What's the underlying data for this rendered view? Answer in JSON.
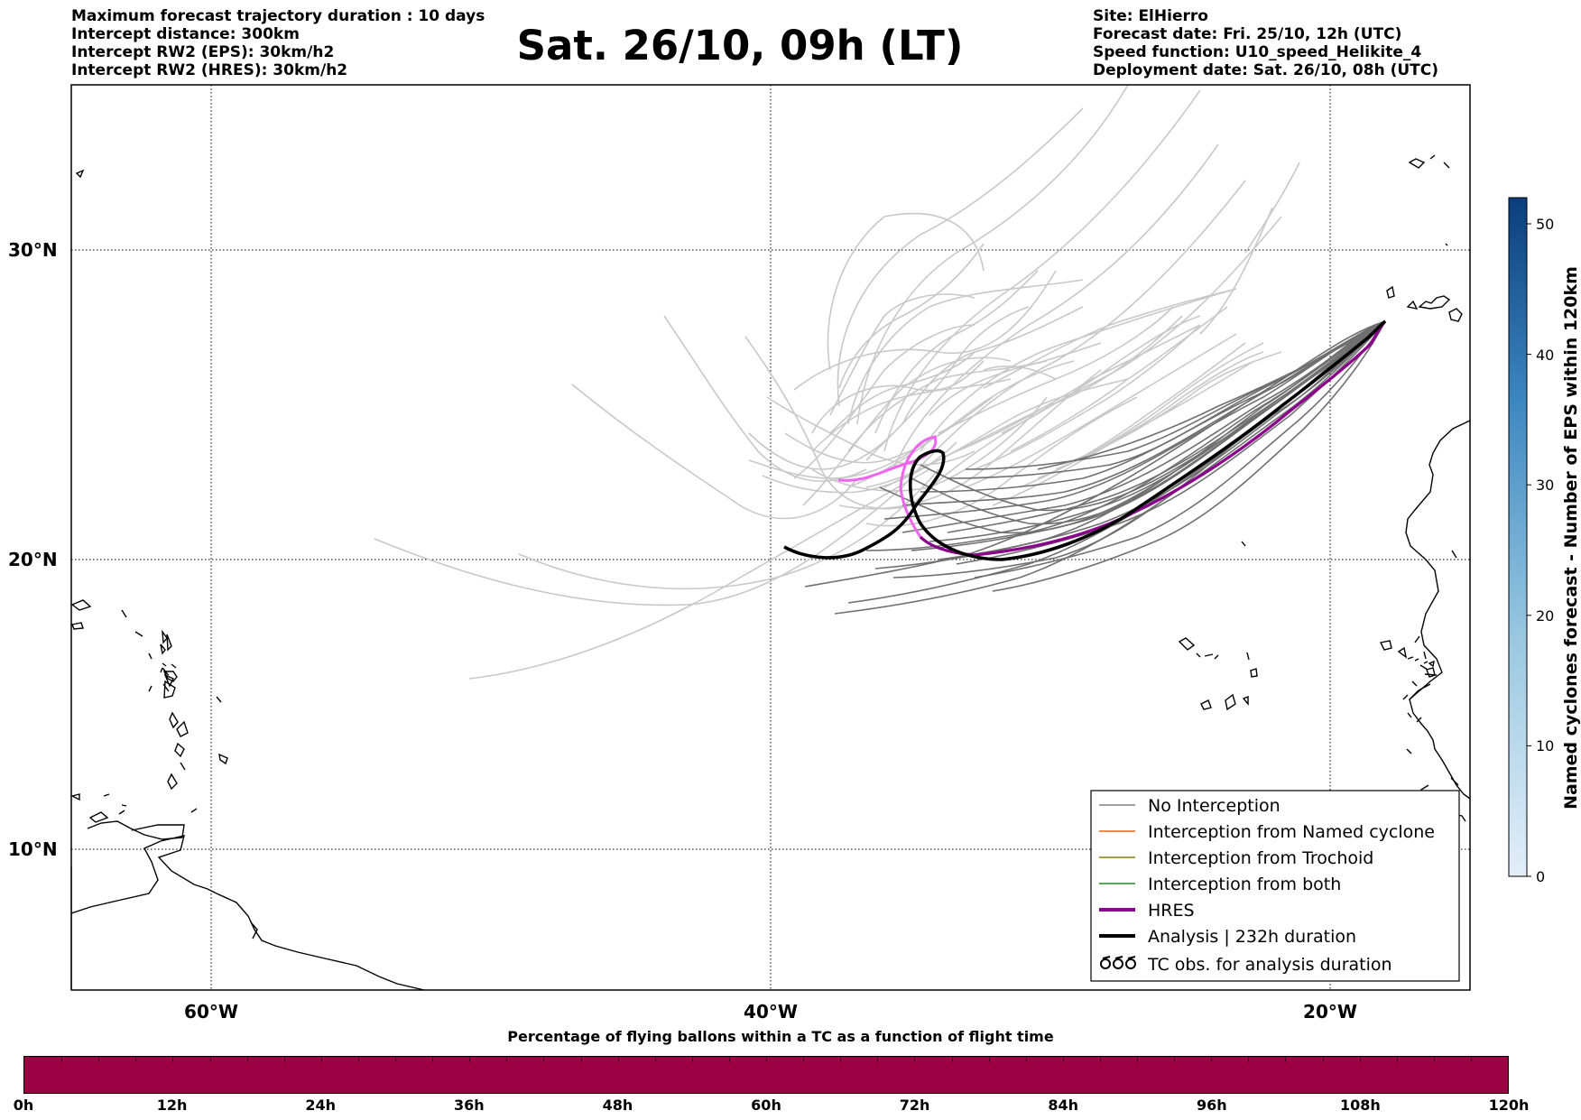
{
  "header": {
    "left_lines": [
      "Maximum forecast trajectory duration : 10 days",
      "Intercept distance: 300km",
      "Intercept RW2 (EPS):  30km/h2",
      "Intercept RW2 (HRES): 30km/h2"
    ],
    "title": "Sat. 26/10, 09h (LT)",
    "right_lines": [
      "Site: ElHierro",
      "Forecast date: Fri. 25/10, 12h (UTC)",
      "Speed function: U10_speed_Helikite_4",
      "Deployment date: Sat. 26/10, 08h (UTC)"
    ]
  },
  "map": {
    "lon_range": [
      -65,
      -15
    ],
    "lat_range": [
      5.35,
      34.6
    ],
    "lat_labels": [
      "30°N",
      "20°N",
      "10°N"
    ],
    "lon_labels": [
      "60°W",
      "40°W",
      "20°W"
    ],
    "colors": {
      "eps_light": "#c8c8c8",
      "eps_dark": "#707070",
      "hres_eps_like": "#ee66ee",
      "hres": "#8b008b",
      "analysis": "#000000"
    }
  },
  "legend": {
    "items": [
      {
        "label": "No Interception",
        "color": "#808080",
        "style": "thin"
      },
      {
        "label": "Interception from Named cyclone",
        "color": "#e8601c",
        "style": "thin"
      },
      {
        "label": "Interception from Trochoid",
        "color": "#808000",
        "style": "thin"
      },
      {
        "label": "Interception from both",
        "color": "#228b22",
        "style": "thin"
      },
      {
        "label": "HRES",
        "color": "#8b008b",
        "style": "thick"
      },
      {
        "label": "Analysis | 232h duration",
        "color": "#000000",
        "style": "thick"
      },
      {
        "label": "TC obs. for analysis duration",
        "color": "#000000",
        "style": "symbol"
      }
    ]
  },
  "colorbar": {
    "label": "Named cyclones forecast - Number of EPS within 120km",
    "ticks": [
      "0",
      "10",
      "20",
      "30",
      "40",
      "50"
    ],
    "max": 52,
    "color_low": "#e3eef9",
    "color_high": "#0b3d7c"
  },
  "time_bar": {
    "title": "Percentage of flying ballons within a TC as a function of flight time",
    "labels": [
      "0h",
      "12h",
      "24h",
      "36h",
      "48h",
      "60h",
      "72h",
      "84h",
      "96h",
      "108h",
      "120h"
    ],
    "fill_color": "#9b0043"
  }
}
